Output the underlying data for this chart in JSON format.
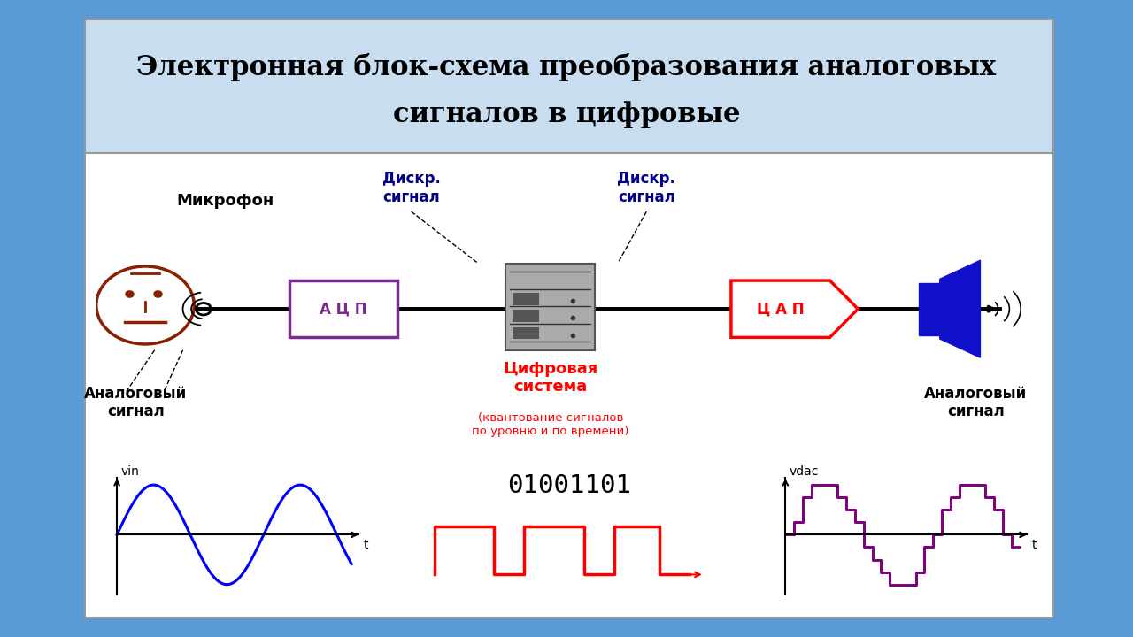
{
  "title_line1": "Электронная блок-схема преобразования аналоговых",
  "title_line2": "сигналов в цифровые",
  "bg_color": "#5b9bd5",
  "panel_facecolor": "#f0f5fa",
  "header_facecolor": "#cfe0ef",
  "label_mikrofon": "Микрофон",
  "label_analog_left": "Аналоговый\nсигнал",
  "label_analog_right": "Аналоговый\nсигнал",
  "label_diskr_left": "Дискр.\nсигнал",
  "label_diskr_right": "Дискр.\nсигнал",
  "label_acp": "А Ц П",
  "label_cap": "Ц А П",
  "label_digital": "Цифровая\nсистема",
  "label_digital_sub": "(квантование сигналов\nпо уровню и по времени)",
  "label_vin": "vin",
  "label_t_left": "t",
  "label_vdac": "vdac",
  "label_t_right": "t",
  "label_binary": "01001101"
}
